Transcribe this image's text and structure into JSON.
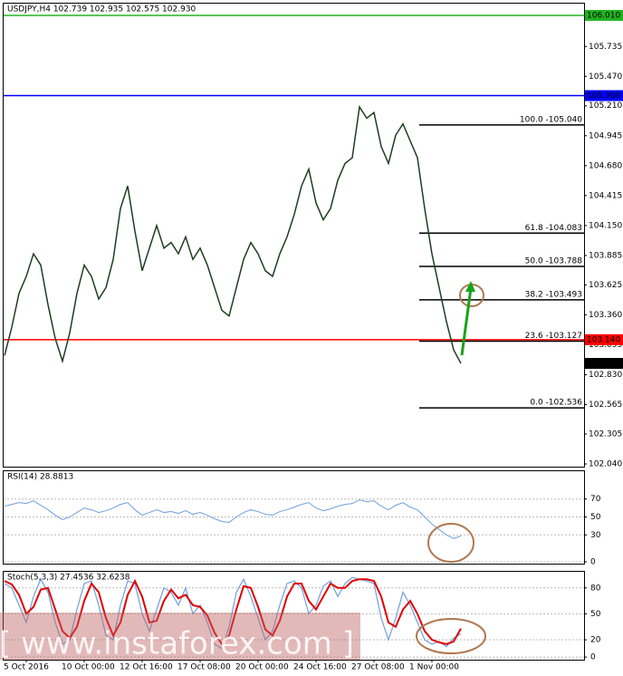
{
  "watermark": "[ www.instaforex.com ]",
  "chart_data": [
    {
      "type": "line",
      "title": "USDJPY,H4  102.739 102.935 102.575 102.930",
      "color": "#1f3d1f",
      "categories": [
        null,
        null,
        null,
        "5 Oct 2016",
        null,
        null,
        null,
        null,
        null,
        null,
        null,
        "10 Oct 00:00",
        null,
        null,
        null,
        null,
        null,
        null,
        null,
        "12 Oct 16:00",
        null,
        null,
        null,
        null,
        null,
        null,
        null,
        "17 Oct 08:00",
        null,
        null,
        null,
        null,
        null,
        null,
        null,
        "20 Oct 00:00",
        null,
        null,
        null,
        null,
        null,
        null,
        null,
        "24 Oct 16:00",
        null,
        null,
        null,
        null,
        null,
        null,
        null,
        "27 Oct 08:00",
        null,
        null,
        null,
        null,
        null,
        null,
        null,
        "1 Nov 00:00",
        null,
        null,
        null,
        null
      ],
      "values": [
        103.0,
        103.25,
        103.55,
        103.7,
        103.9,
        103.8,
        103.45,
        103.15,
        102.95,
        103.2,
        103.55,
        103.8,
        103.7,
        103.5,
        103.6,
        103.85,
        104.3,
        104.5,
        104.1,
        103.75,
        103.95,
        104.15,
        103.95,
        104.0,
        103.9,
        104.05,
        103.85,
        103.95,
        103.8,
        103.6,
        103.4,
        103.35,
        103.6,
        103.85,
        104.0,
        103.9,
        103.75,
        103.7,
        103.9,
        104.05,
        104.25,
        104.5,
        104.65,
        104.35,
        104.2,
        104.3,
        104.55,
        104.7,
        104.75,
        105.2,
        105.1,
        105.15,
        104.85,
        104.7,
        104.95,
        105.05,
        104.9,
        104.75,
        104.3,
        103.9,
        103.6,
        103.3,
        103.05,
        102.93
      ],
      "ylim": [
        102.016,
        106.114
      ],
      "yticks": [
        105.735,
        {
          "value": 105.47,
          "label": "105.470"
        },
        {
          "value": 105.21,
          "label": "105.210"
        },
        104.945,
        {
          "value": 104.68,
          "label": "104.680"
        },
        104.415,
        {
          "value": 104.15,
          "label": "104.150"
        },
        103.885,
        103.625,
        {
          "value": 103.36,
          "label": "103.360"
        },
        103.095,
        {
          "value": 102.83,
          "label": "102.830"
        },
        102.565,
        102.305,
        {
          "value": 102.04,
          "label": "102.040"
        }
      ],
      "levels": [
        {
          "value": 106.01,
          "label": "106.010",
          "color": "#22b322"
        },
        {
          "value": 105.3,
          "label": "105.300",
          "color": "#0000ff"
        },
        {
          "value": 103.14,
          "label": "103.140",
          "color": "#ff0000"
        },
        {
          "value": 102.93,
          "label": "102.930",
          "color": "#000000"
        }
      ],
      "fib_levels": [
        {
          "value": 105.04,
          "label": "100.0 -105.040"
        },
        {
          "value": 104.083,
          "label": "61.8 -104.083"
        },
        {
          "value": 103.788,
          "label": "50.0 -103.788"
        },
        {
          "value": 103.493,
          "label": "38.2 -103.493"
        },
        {
          "value": 103.127,
          "label": "23.6 -103.127"
        },
        {
          "value": 102.536,
          "label": "0.0 -102.536"
        }
      ]
    },
    {
      "type": "line",
      "title": "RSI(14) 28.8813",
      "color": "#6f9fdf",
      "values": [
        62,
        64,
        66,
        65,
        68,
        63,
        58,
        52,
        47,
        50,
        55,
        60,
        58,
        55,
        57,
        60,
        64,
        66,
        58,
        52,
        55,
        58,
        55,
        56,
        54,
        57,
        53,
        55,
        52,
        48,
        45,
        44,
        50,
        55,
        58,
        56,
        53,
        52,
        56,
        58,
        61,
        64,
        66,
        60,
        57,
        59,
        62,
        64,
        65,
        69,
        67,
        68,
        62,
        58,
        63,
        66,
        61,
        58,
        50,
        42,
        36,
        30,
        26,
        29
      ],
      "ylim": [
        -2,
        101
      ],
      "yticks": [
        70,
        50,
        30,
        0
      ]
    },
    {
      "type": "line",
      "title": "Stoch(5,3,3) 27.4536 32.6238",
      "series": [
        {
          "color": "#6f9fdf",
          "values": [
            85,
            80,
            60,
            40,
            70,
            90,
            75,
            40,
            15,
            20,
            55,
            85,
            88,
            60,
            25,
            20,
            60,
            88,
            85,
            50,
            30,
            55,
            80,
            75,
            60,
            80,
            50,
            60,
            40,
            15,
            10,
            35,
            75,
            90,
            70,
            45,
            20,
            30,
            60,
            85,
            88,
            80,
            50,
            60,
            82,
            88,
            70,
            85,
            92,
            90,
            88,
            85,
            45,
            20,
            45,
            75,
            60,
            40,
            20,
            15,
            18,
            12,
            22,
            27
          ]
        },
        {
          "color": "#e00000",
          "values": [
            88,
            84,
            72,
            50,
            58,
            78,
            80,
            55,
            30,
            22,
            35,
            65,
            85,
            75,
            45,
            25,
            40,
            72,
            88,
            70,
            40,
            42,
            65,
            78,
            68,
            72,
            60,
            58,
            48,
            28,
            15,
            25,
            55,
            82,
            80,
            58,
            32,
            25,
            42,
            70,
            85,
            85,
            65,
            55,
            70,
            85,
            80,
            80,
            88,
            90,
            90,
            88,
            70,
            40,
            35,
            55,
            65,
            50,
            30,
            20,
            17,
            15,
            18,
            33
          ]
        }
      ],
      "ylim": [
        -3,
        98.6
      ],
      "yticks": [
        80,
        50,
        20,
        0
      ]
    }
  ]
}
